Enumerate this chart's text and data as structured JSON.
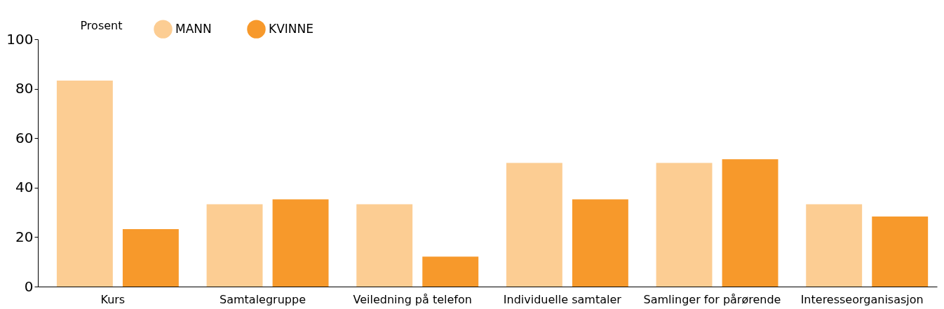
{
  "chart_data": {
    "type": "bar",
    "ylabel": "Prosent",
    "categories": [
      "Kurs",
      "Samtalegruppe",
      "Veiledning på telefon",
      "Individuelle samtaler",
      "Samlinger for pårørende",
      "Interesseorganisasjon"
    ],
    "series": [
      {
        "name": "MANN",
        "color": "#fccd93",
        "values": [
          83.3,
          33.3,
          33.3,
          50,
          50,
          33.3
        ]
      },
      {
        "name": "KVINNE",
        "color": "#f7992b",
        "values": [
          23.2,
          35.3,
          12.1,
          35.3,
          51.5,
          28.3
        ]
      }
    ],
    "ylim": [
      0,
      100
    ],
    "yticks": [
      0,
      20,
      40,
      60,
      80,
      100
    ],
    "grid": false,
    "legend": "top left"
  }
}
